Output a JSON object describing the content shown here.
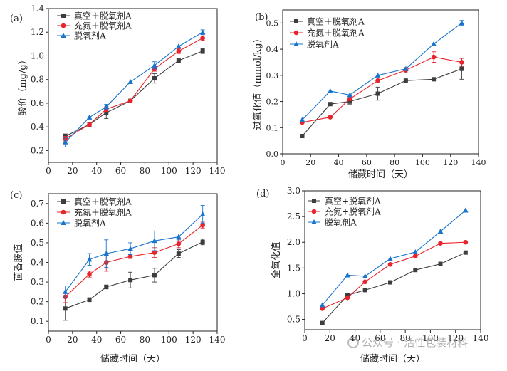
{
  "colors": {
    "series1": "#3d3d3d",
    "series2": "#e8232b",
    "series3": "#1874cd",
    "axis": "#222222"
  },
  "chart_data": [
    {
      "type": "line",
      "panel_label": "(a)",
      "ylabel": "酸价（mg/g）",
      "xlabel": "",
      "xlim": [
        0,
        140
      ],
      "ylim": [
        0.1,
        1.4
      ],
      "xticks": [
        "0",
        "20",
        "40",
        "60",
        "80",
        "100",
        "120",
        "140"
      ],
      "yticks": [
        "0.2",
        "0.4",
        "0.6",
        "0.8",
        "1.0",
        "1.2",
        "1.4"
      ],
      "legend_position": "top-left",
      "x": [
        14,
        34,
        48,
        68,
        88,
        108,
        128
      ],
      "series": [
        {
          "name": "真空＋脱氧剂A",
          "marker": "square",
          "values": [
            0.32,
            0.42,
            0.52,
            0.62,
            0.81,
            0.96,
            1.04
          ],
          "errors": [
            0.02,
            0.02,
            0.05,
            0.0,
            0.04,
            0.02,
            0.02
          ]
        },
        {
          "name": "充氮＋脱氧剂A",
          "marker": "circle",
          "values": [
            0.3,
            0.42,
            0.55,
            0.62,
            0.89,
            1.04,
            1.15
          ],
          "errors": [
            0.02,
            0.02,
            0.02,
            0.0,
            0.02,
            0.02,
            0.02
          ]
        },
        {
          "name": "脱氧剂A",
          "marker": "triangle",
          "values": [
            0.27,
            0.48,
            0.57,
            0.78,
            0.92,
            1.08,
            1.2
          ],
          "errors": [
            0.04,
            0.0,
            0.02,
            0.0,
            0.03,
            0.0,
            0.02
          ]
        }
      ]
    },
    {
      "type": "line",
      "panel_label": "(b)",
      "ylabel": "过氧化值（mmol/kg）",
      "xlabel": "储藏时间（天）",
      "xlim": [
        0,
        140
      ],
      "ylim": [
        0,
        0.55
      ],
      "xticks": [
        "0",
        "20",
        "40",
        "60",
        "80",
        "100",
        "120",
        "140"
      ],
      "yticks": [
        "0.0",
        "0.1",
        "0.2",
        "0.3",
        "0.4",
        "0.5"
      ],
      "legend_position": "top-left",
      "x": [
        14,
        34,
        48,
        68,
        88,
        108,
        128
      ],
      "series": [
        {
          "name": "真空＋脱氧剂A",
          "marker": "square",
          "values": [
            0.068,
            0.19,
            0.2,
            0.23,
            0.28,
            0.285,
            0.325
          ],
          "errors": [
            0.0,
            0.0,
            0.01,
            0.025,
            0.0,
            0.0,
            0.04
          ]
        },
        {
          "name": "充氮＋脱氧剂A",
          "marker": "circle",
          "values": [
            0.12,
            0.14,
            0.21,
            0.28,
            0.32,
            0.37,
            0.35
          ],
          "errors": [
            0.0,
            0.0,
            0.0,
            0.0,
            0.01,
            0.02,
            0.015
          ]
        },
        {
          "name": "脱氧剂A",
          "marker": "triangle",
          "values": [
            0.13,
            0.24,
            0.225,
            0.3,
            0.325,
            0.42,
            0.5
          ],
          "errors": [
            0.0,
            0.0,
            0.0,
            0.0,
            0.0,
            0.0,
            0.01
          ]
        }
      ]
    },
    {
      "type": "line",
      "panel_label": "(c)",
      "ylabel": "茴香胺值",
      "xlabel": "储藏时间（天）",
      "xlim": [
        0,
        140
      ],
      "ylim": [
        0.05,
        0.75
      ],
      "xticks": [
        "0",
        "20",
        "40",
        "60",
        "80",
        "100",
        "120",
        "140"
      ],
      "yticks": [
        "0.1",
        "0.2",
        "0.3",
        "0.4",
        "0.5",
        "0.6",
        "0.7"
      ],
      "legend_position": "top-left",
      "x": [
        14,
        34,
        48,
        68,
        88,
        108,
        128
      ],
      "series": [
        {
          "name": "真空＋脱氧剂A",
          "marker": "square",
          "values": [
            0.165,
            0.21,
            0.275,
            0.31,
            0.335,
            0.445,
            0.505
          ],
          "errors": [
            0.06,
            0.01,
            0.01,
            0.04,
            0.035,
            0.02,
            0.015
          ]
        },
        {
          "name": "充氮＋脱氧剂A",
          "marker": "circle",
          "values": [
            0.225,
            0.34,
            0.4,
            0.43,
            0.45,
            0.495,
            0.59
          ],
          "errors": [
            0.03,
            0.015,
            0.045,
            0.01,
            0.025,
            0.02,
            0.015
          ]
        },
        {
          "name": "脱氧剂A",
          "marker": "triangle",
          "values": [
            0.25,
            0.415,
            0.445,
            0.47,
            0.51,
            0.53,
            0.645
          ],
          "errors": [
            0.03,
            0.03,
            0.07,
            0.03,
            0.05,
            0.015,
            0.045
          ]
        }
      ]
    },
    {
      "type": "line",
      "panel_label": "(d)",
      "ylabel": "全氧化值",
      "xlabel": "储藏时间（天）",
      "xlim": [
        0,
        140
      ],
      "ylim": [
        0.3,
        3.0
      ],
      "xticks": [
        "0",
        "20",
        "40",
        "60",
        "80",
        "100",
        "120",
        "140"
      ],
      "yticks": [
        "0.5",
        "1.0",
        "1.5",
        "2.0",
        "2.5",
        "3.0"
      ],
      "legend_position": "top-left",
      "x": [
        14,
        34,
        48,
        68,
        88,
        108,
        128
      ],
      "series": [
        {
          "name": "真空+脱氧剂A",
          "marker": "square",
          "values": [
            0.43,
            0.97,
            1.07,
            1.22,
            1.46,
            1.58,
            1.8
          ],
          "errors": [
            0,
            0,
            0,
            0,
            0,
            0,
            0
          ]
        },
        {
          "name": "充氮+脱氧剂A",
          "marker": "circle",
          "values": [
            0.71,
            0.92,
            1.23,
            1.57,
            1.73,
            1.98,
            2.0
          ],
          "errors": [
            0,
            0,
            0,
            0,
            0,
            0,
            0
          ]
        },
        {
          "name": "脱氧剂A",
          "marker": "triangle",
          "values": [
            0.78,
            1.36,
            1.34,
            1.68,
            1.81,
            2.21,
            2.62
          ],
          "errors": [
            0,
            0,
            0,
            0,
            0,
            0,
            0
          ]
        }
      ]
    }
  ],
  "watermark": "公众号 · 活性包装材料"
}
